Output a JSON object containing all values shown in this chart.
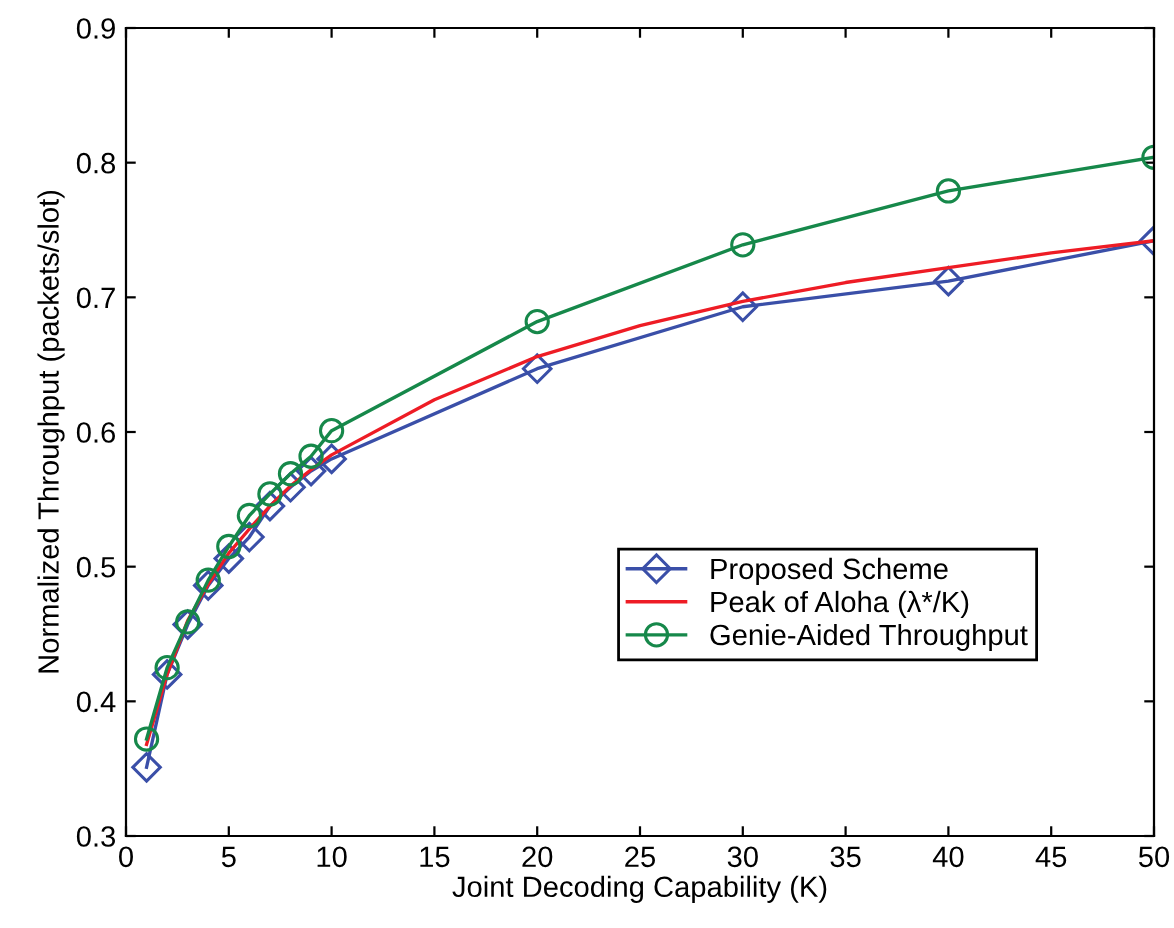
{
  "chart_data": {
    "type": "line",
    "xlabel": "Joint Decoding Capability (K)",
    "ylabel": "Normalized Throughput (packets/slot)",
    "xlim": [
      0,
      50
    ],
    "xticks": [
      0,
      5,
      10,
      15,
      20,
      25,
      30,
      35,
      40,
      45,
      50
    ],
    "ylim": [
      0.3,
      0.9
    ],
    "yticks": [
      0.3,
      0.4,
      0.5,
      0.6,
      0.7,
      0.8,
      0.9
    ],
    "grid": false,
    "legend": "lower right",
    "series": [
      {
        "name": "Proposed Scheme",
        "color": "#3a4fa8",
        "marker": "diamond",
        "x": [
          1,
          2,
          3,
          4,
          5,
          6,
          7,
          8,
          9,
          10,
          20,
          30,
          40,
          50
        ],
        "values": [
          0.351,
          0.42,
          0.457,
          0.486,
          0.506,
          0.522,
          0.545,
          0.559,
          0.571,
          0.58,
          0.647,
          0.693,
          0.712,
          0.742
        ]
      },
      {
        "name": "Peak of Aloha (λ*/K)",
        "color": "#ee1c25",
        "marker": "none",
        "x": [
          1,
          2,
          3,
          4,
          5,
          6,
          7,
          8,
          9,
          10,
          15,
          20,
          25,
          30,
          35,
          40,
          45,
          50
        ],
        "values": [
          0.368,
          0.42,
          0.46,
          0.487,
          0.51,
          0.528,
          0.545,
          0.56,
          0.572,
          0.583,
          0.624,
          0.656,
          0.679,
          0.697,
          0.711,
          0.722,
          0.733,
          0.742
        ]
      },
      {
        "name": "Genie-Aided Throughput",
        "color": "#16884a",
        "marker": "circle",
        "x": [
          1,
          2,
          3,
          4,
          5,
          6,
          7,
          8,
          9,
          10,
          20,
          30,
          40,
          50
        ],
        "values": [
          0.372,
          0.425,
          0.459,
          0.49,
          0.515,
          0.538,
          0.554,
          0.569,
          0.582,
          0.601,
          0.682,
          0.739,
          0.779,
          0.804
        ]
      }
    ]
  }
}
